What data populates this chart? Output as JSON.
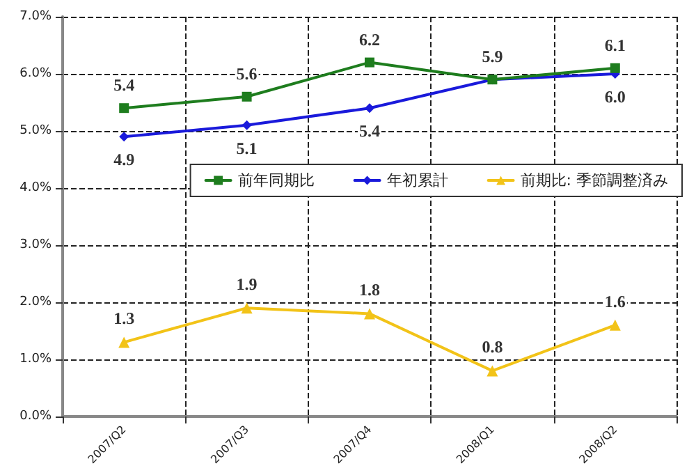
{
  "chart_data": {
    "type": "line",
    "categories": [
      "2007/Q2",
      "2007/Q3",
      "2007/Q4",
      "2008/Q1",
      "2008/Q2"
    ],
    "series": [
      {
        "name": "前年同期比",
        "color": "#1e7d1e",
        "marker": "square",
        "values": [
          5.4,
          5.6,
          6.2,
          5.9,
          6.1
        ],
        "value_labels": [
          "5.4",
          "5.6",
          "6.2",
          "5.9",
          "6.1"
        ]
      },
      {
        "name": "年初累計",
        "color": "#1a1adb",
        "marker": "diamond",
        "values": [
          4.9,
          5.1,
          5.4,
          5.9,
          6.0
        ],
        "value_labels": [
          "4.9",
          "5.1",
          "5.4",
          null,
          "6.0"
        ]
      },
      {
        "name": "前期比: 季節調整済み",
        "color": "#f2c318",
        "marker": "triangle",
        "values": [
          1.3,
          1.9,
          1.8,
          0.8,
          1.6
        ],
        "value_labels": [
          "1.3",
          "1.9",
          "1.8",
          "0.8",
          "1.6"
        ]
      }
    ],
    "ylim": [
      0,
      7
    ],
    "yticks": [
      {
        "value": 0,
        "label": "0.0%"
      },
      {
        "value": 1,
        "label": "1.0%"
      },
      {
        "value": 2,
        "label": "2.0%"
      },
      {
        "value": 3,
        "label": "3.0%"
      },
      {
        "value": 4,
        "label": "4.0%"
      },
      {
        "value": 5,
        "label": "5.0%"
      },
      {
        "value": 6,
        "label": "6.0%"
      },
      {
        "value": 7,
        "label": "7.0%"
      }
    ],
    "grid": true,
    "legend": "right"
  }
}
